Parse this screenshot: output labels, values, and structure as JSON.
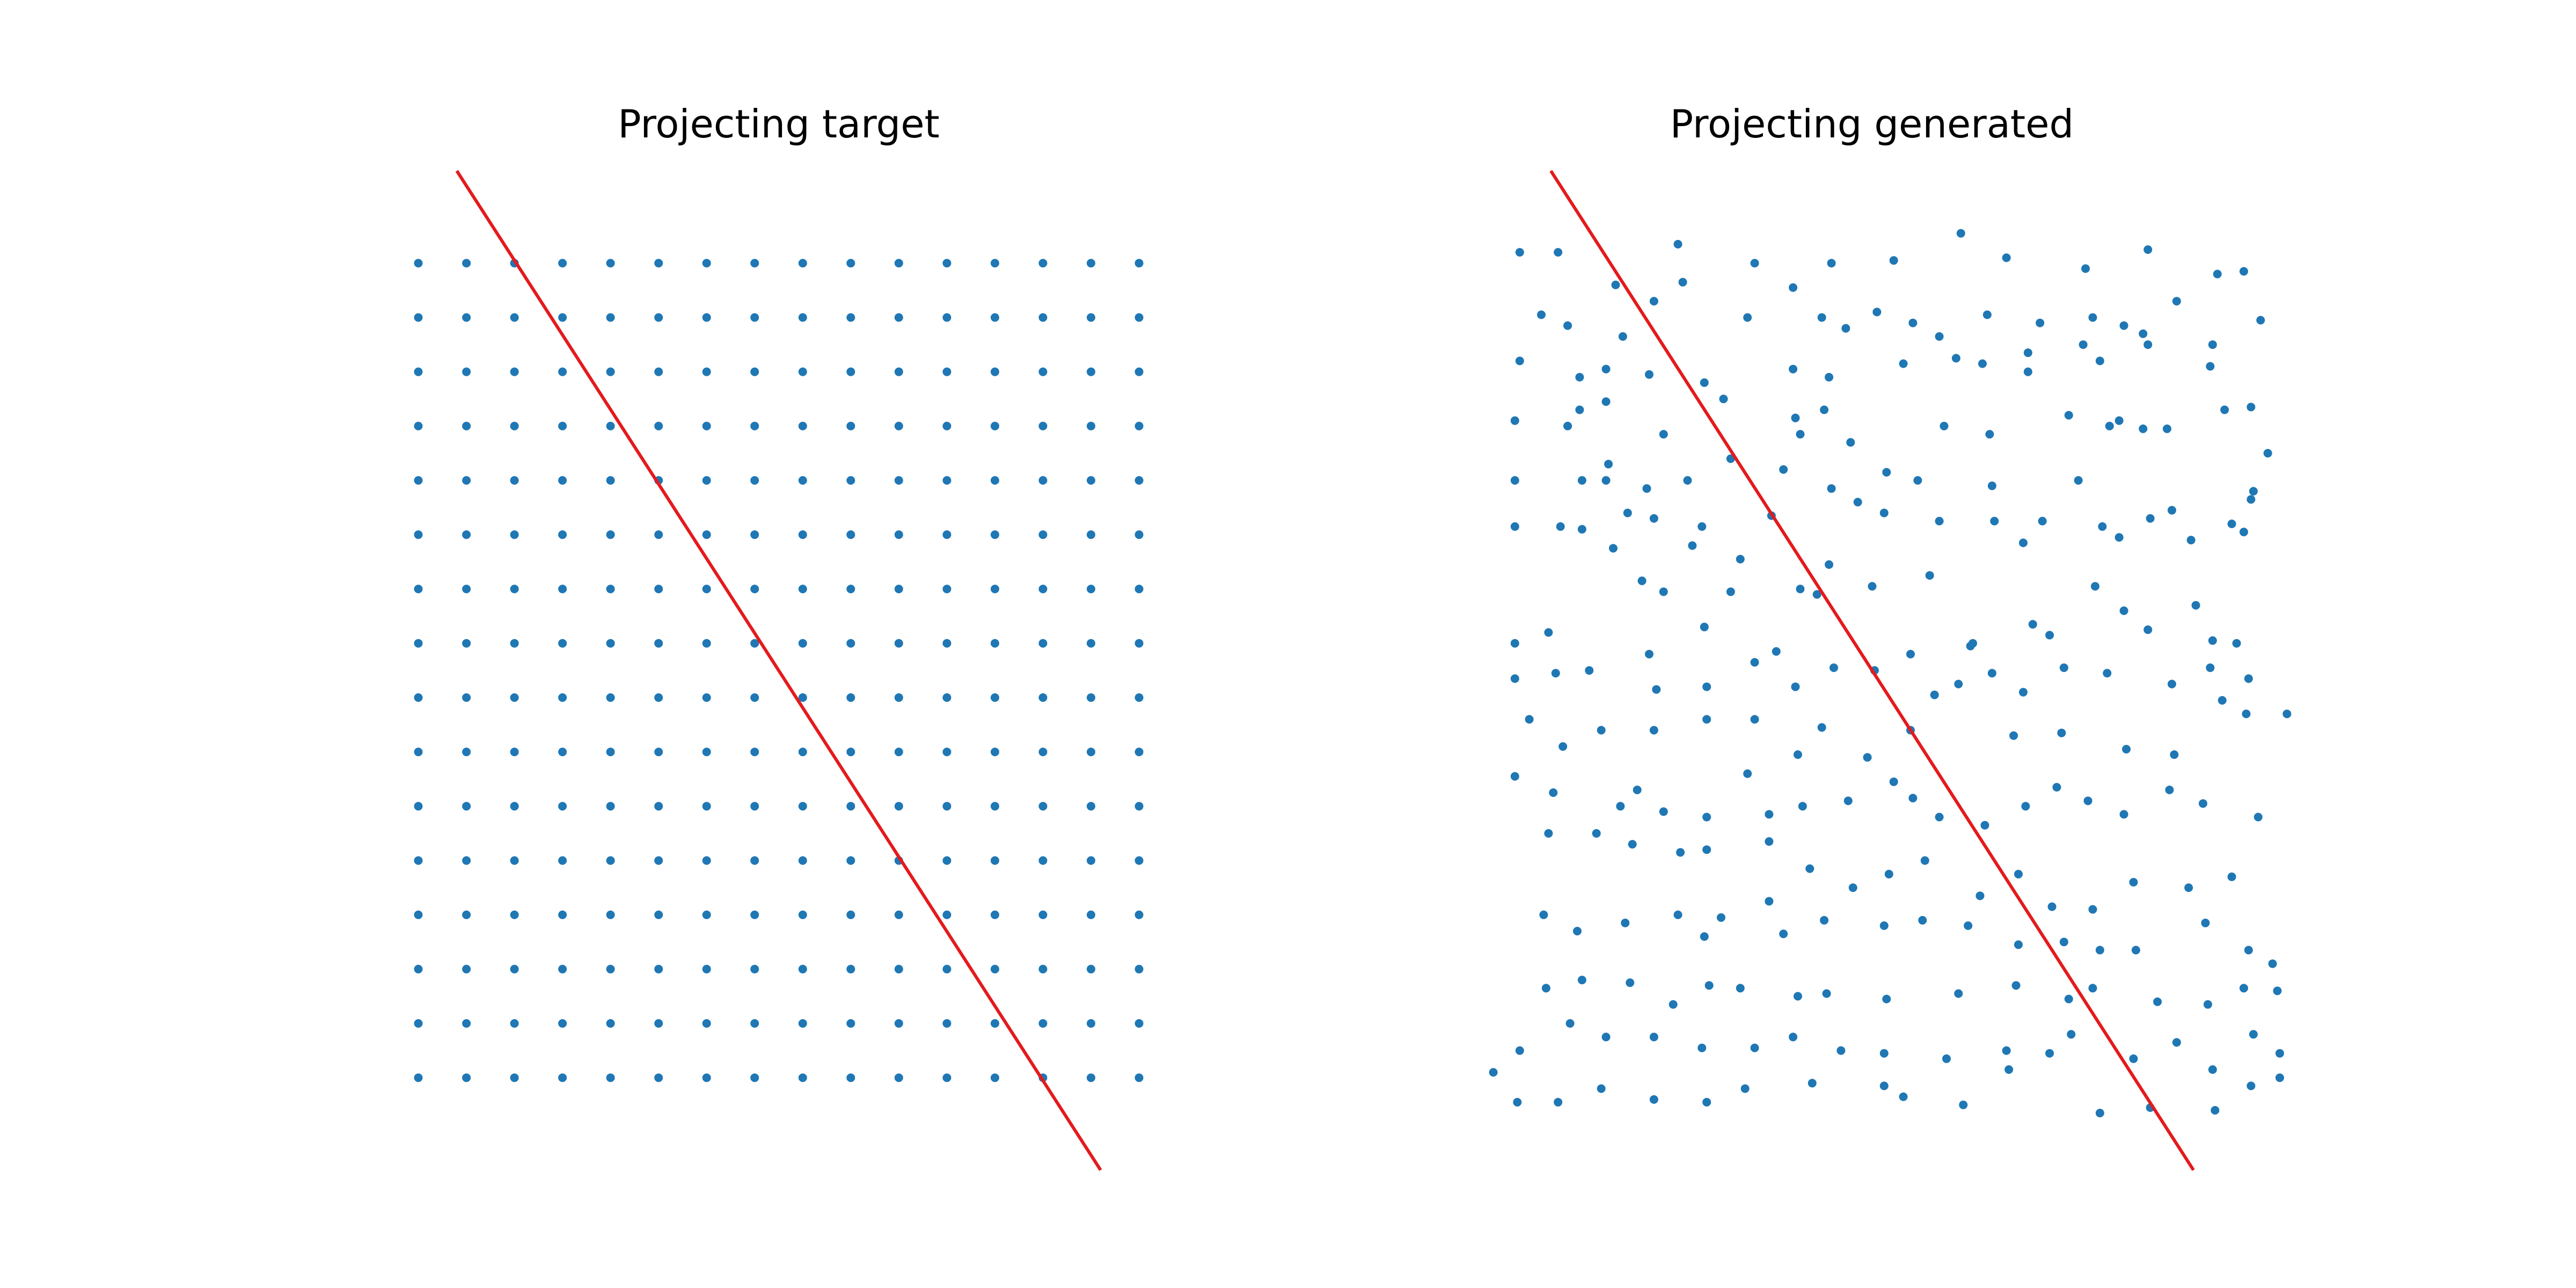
{
  "chart_data": [
    {
      "type": "scatter",
      "title": "Projecting target",
      "xlabel": "",
      "ylabel": "",
      "axes_visible": false,
      "grid": false,
      "xlim": [
        -1.0,
        16.0
      ],
      "ylim": [
        -1.5,
        17.0
      ],
      "point_color": "#1f77b4",
      "grid_points": {
        "x_start": 0,
        "x_end": 15,
        "y_start": 0,
        "y_end": 15,
        "step": 1
      },
      "projection_line": {
        "color": "#e41a1c",
        "points": [
          [
            0.8,
            16.7
          ],
          [
            14.2,
            -1.7
          ]
        ]
      }
    },
    {
      "type": "scatter",
      "title": "Projecting generated",
      "xlabel": "",
      "ylabel": "",
      "axes_visible": false,
      "grid": false,
      "xlim": [
        -1.0,
        16.0
      ],
      "ylim": [
        -1.5,
        17.0
      ],
      "point_color": "#1f77b4",
      "points": [
        [
          0.15,
          15.2
        ],
        [
          0.95,
          15.2
        ],
        [
          3.45,
          15.35
        ],
        [
          5.05,
          15.0
        ],
        [
          6.65,
          15.0
        ],
        [
          7.95,
          15.05
        ],
        [
          9.35,
          15.55
        ],
        [
          10.3,
          15.1
        ],
        [
          11.95,
          14.9
        ],
        [
          13.25,
          15.25
        ],
        [
          14.7,
          14.8
        ],
        [
          15.25,
          14.85
        ],
        [
          2.15,
          14.6
        ],
        [
          2.95,
          14.3
        ],
        [
          3.55,
          14.65
        ],
        [
          5.85,
          14.55
        ],
        [
          6.45,
          14.0
        ],
        [
          7.6,
          14.1
        ],
        [
          8.35,
          13.9
        ],
        [
          9.9,
          14.05
        ],
        [
          11.0,
          13.9
        ],
        [
          12.1,
          14.0
        ],
        [
          12.75,
          13.85
        ],
        [
          13.85,
          14.3
        ],
        [
          0.6,
          14.05
        ],
        [
          1.15,
          13.85
        ],
        [
          2.3,
          13.65
        ],
        [
          4.9,
          14.0
        ],
        [
          6.95,
          13.8
        ],
        [
          8.9,
          13.65
        ],
        [
          10.75,
          13.35
        ],
        [
          11.9,
          13.5
        ],
        [
          13.15,
          13.7
        ],
        [
          14.6,
          13.5
        ],
        [
          15.6,
          13.95
        ],
        [
          0.15,
          13.2
        ],
        [
          1.4,
          12.9
        ],
        [
          1.95,
          13.05
        ],
        [
          2.85,
          12.95
        ],
        [
          4.0,
          12.8
        ],
        [
          5.85,
          13.05
        ],
        [
          6.6,
          12.9
        ],
        [
          8.15,
          13.15
        ],
        [
          9.25,
          13.25
        ],
        [
          9.8,
          13.15
        ],
        [
          10.75,
          13.0
        ],
        [
          12.25,
          13.2
        ],
        [
          13.25,
          13.5
        ],
        [
          14.55,
          13.1
        ],
        [
          1.4,
          12.3
        ],
        [
          1.95,
          12.45
        ],
        [
          4.4,
          12.5
        ],
        [
          5.9,
          12.15
        ],
        [
          6.5,
          12.3
        ],
        [
          9.0,
          12.0
        ],
        [
          9.95,
          11.85
        ],
        [
          11.6,
          12.2
        ],
        [
          12.45,
          12.0
        ],
        [
          13.15,
          11.95
        ],
        [
          14.85,
          12.3
        ],
        [
          0.05,
          12.1
        ],
        [
          1.15,
          12.0
        ],
        [
          2.0,
          11.3
        ],
        [
          3.15,
          11.85
        ],
        [
          4.55,
          11.4
        ],
        [
          5.65,
          11.2
        ],
        [
          6.0,
          11.85
        ],
        [
          7.05,
          11.7
        ],
        [
          7.8,
          11.15
        ],
        [
          12.65,
          12.1
        ],
        [
          13.65,
          11.95
        ],
        [
          15.4,
          12.35
        ],
        [
          0.05,
          11.0
        ],
        [
          1.45,
          11.0
        ],
        [
          1.95,
          11.0
        ],
        [
          2.8,
          10.85
        ],
        [
          3.65,
          11.0
        ],
        [
          5.4,
          10.35
        ],
        [
          6.65,
          10.85
        ],
        [
          7.2,
          10.6
        ],
        [
          8.45,
          11.0
        ],
        [
          10.0,
          10.9
        ],
        [
          11.05,
          10.25
        ],
        [
          11.8,
          11.0
        ],
        [
          12.3,
          10.15
        ],
        [
          13.75,
          10.45
        ],
        [
          15.0,
          10.2
        ],
        [
          15.4,
          10.65
        ],
        [
          0.05,
          10.15
        ],
        [
          1.0,
          10.15
        ],
        [
          1.45,
          10.1
        ],
        [
          2.1,
          9.75
        ],
        [
          2.4,
          10.4
        ],
        [
          2.95,
          10.3
        ],
        [
          3.95,
          10.15
        ],
        [
          3.75,
          9.8
        ],
        [
          4.75,
          9.55
        ],
        [
          6.6,
          9.45
        ],
        [
          7.75,
          10.4
        ],
        [
          8.9,
          10.25
        ],
        [
          10.05,
          10.25
        ],
        [
          10.65,
          9.85
        ],
        [
          12.65,
          9.95
        ],
        [
          13.3,
          10.3
        ],
        [
          14.15,
          9.9
        ],
        [
          15.25,
          10.05
        ],
        [
          15.45,
          10.8
        ],
        [
          15.75,
          11.5
        ],
        [
          2.7,
          9.15
        ],
        [
          3.15,
          8.95
        ],
        [
          4.55,
          8.95
        ],
        [
          6.0,
          9.0
        ],
        [
          6.35,
          8.9
        ],
        [
          7.5,
          9.05
        ],
        [
          8.7,
          9.25
        ],
        [
          9.6,
          8.0
        ],
        [
          10.85,
          8.35
        ],
        [
          12.15,
          9.05
        ],
        [
          13.25,
          8.25
        ],
        [
          14.25,
          8.7
        ],
        [
          15.1,
          8.0
        ],
        [
          0.05,
          8.0
        ],
        [
          0.75,
          8.2
        ],
        [
          2.85,
          7.8
        ],
        [
          4.0,
          8.3
        ],
        [
          5.5,
          7.85
        ],
        [
          8.3,
          7.8
        ],
        [
          9.55,
          7.95
        ],
        [
          11.2,
          8.15
        ],
        [
          12.75,
          8.6
        ],
        [
          14.6,
          8.05
        ],
        [
          0.05,
          7.35
        ],
        [
          0.9,
          7.45
        ],
        [
          1.6,
          7.5
        ],
        [
          3.0,
          7.15
        ],
        [
          4.05,
          7.2
        ],
        [
          5.05,
          7.65
        ],
        [
          5.9,
          7.2
        ],
        [
          6.7,
          7.55
        ],
        [
          7.55,
          7.5
        ],
        [
          8.8,
          7.05
        ],
        [
          9.3,
          7.25
        ],
        [
          10.0,
          7.45
        ],
        [
          10.65,
          7.1
        ],
        [
          11.5,
          7.55
        ],
        [
          12.4,
          7.45
        ],
        [
          13.75,
          7.25
        ],
        [
          14.55,
          7.55
        ],
        [
          15.35,
          7.35
        ],
        [
          14.8,
          6.95
        ],
        [
          16.15,
          6.7
        ],
        [
          0.35,
          6.6
        ],
        [
          1.05,
          6.1
        ],
        [
          1.85,
          6.4
        ],
        [
          2.95,
          6.4
        ],
        [
          4.05,
          6.6
        ],
        [
          5.05,
          6.6
        ],
        [
          5.95,
          5.95
        ],
        [
          6.45,
          6.45
        ],
        [
          7.4,
          5.9
        ],
        [
          8.3,
          6.4
        ],
        [
          10.45,
          6.3
        ],
        [
          11.45,
          6.35
        ],
        [
          12.8,
          6.05
        ],
        [
          13.8,
          5.95
        ],
        [
          15.3,
          6.7
        ],
        [
          0.05,
          5.55
        ],
        [
          0.85,
          5.25
        ],
        [
          2.25,
          5.0
        ],
        [
          2.6,
          5.3
        ],
        [
          3.15,
          4.9
        ],
        [
          4.05,
          4.8
        ],
        [
          4.9,
          5.6
        ],
        [
          5.35,
          4.85
        ],
        [
          6.05,
          5.0
        ],
        [
          7.0,
          5.1
        ],
        [
          7.95,
          5.45
        ],
        [
          8.35,
          5.15
        ],
        [
          8.9,
          4.8
        ],
        [
          9.85,
          4.65
        ],
        [
          10.7,
          5.0
        ],
        [
          11.35,
          5.35
        ],
        [
          12.0,
          5.1
        ],
        [
          12.75,
          4.85
        ],
        [
          13.7,
          5.3
        ],
        [
          14.4,
          5.05
        ],
        [
          15.55,
          4.8
        ],
        [
          0.75,
          4.5
        ],
        [
          1.75,
          4.5
        ],
        [
          2.5,
          4.3
        ],
        [
          3.5,
          4.15
        ],
        [
          4.05,
          4.2
        ],
        [
          5.35,
          4.35
        ],
        [
          6.2,
          3.85
        ],
        [
          7.1,
          3.5
        ],
        [
          7.85,
          3.75
        ],
        [
          8.6,
          4.0
        ],
        [
          9.75,
          3.35
        ],
        [
          10.55,
          3.75
        ],
        [
          11.25,
          3.15
        ],
        [
          12.1,
          3.1
        ],
        [
          12.95,
          3.6
        ],
        [
          14.1,
          3.5
        ],
        [
          15.0,
          3.7
        ],
        [
          0.65,
          3.0
        ],
        [
          1.35,
          2.7
        ],
        [
          2.35,
          2.85
        ],
        [
          3.45,
          3.0
        ],
        [
          4.0,
          2.6
        ],
        [
          4.35,
          2.95
        ],
        [
          5.35,
          3.25
        ],
        [
          5.65,
          2.65
        ],
        [
          6.5,
          2.9
        ],
        [
          7.75,
          2.8
        ],
        [
          8.55,
          2.9
        ],
        [
          9.5,
          2.8
        ],
        [
          10.55,
          2.45
        ],
        [
          11.5,
          2.5
        ],
        [
          12.25,
          2.35
        ],
        [
          13.0,
          2.35
        ],
        [
          14.45,
          2.85
        ],
        [
          15.35,
          2.35
        ],
        [
          15.85,
          2.1
        ],
        [
          0.7,
          1.65
        ],
        [
          1.45,
          1.8
        ],
        [
          2.45,
          1.75
        ],
        [
          3.35,
          1.35
        ],
        [
          4.1,
          1.7
        ],
        [
          4.75,
          1.65
        ],
        [
          5.95,
          1.5
        ],
        [
          6.55,
          1.55
        ],
        [
          7.8,
          1.45
        ],
        [
          9.3,
          1.55
        ],
        [
          10.5,
          1.7
        ],
        [
          11.6,
          1.45
        ],
        [
          12.1,
          1.65
        ],
        [
          13.45,
          1.4
        ],
        [
          14.5,
          1.35
        ],
        [
          15.25,
          1.65
        ],
        [
          15.95,
          1.6
        ],
        [
          0.15,
          0.5
        ],
        [
          1.2,
          1.0
        ],
        [
          1.95,
          0.75
        ],
        [
          2.95,
          0.75
        ],
        [
          3.95,
          0.55
        ],
        [
          5.05,
          0.55
        ],
        [
          5.85,
          0.75
        ],
        [
          6.85,
          0.5
        ],
        [
          7.75,
          0.45
        ],
        [
          9.05,
          0.35
        ],
        [
          10.3,
          0.5
        ],
        [
          11.2,
          0.45
        ],
        [
          11.65,
          0.8
        ],
        [
          12.95,
          0.35
        ],
        [
          13.85,
          0.65
        ],
        [
          14.6,
          0.15
        ],
        [
          15.45,
          0.8
        ],
        [
          16.0,
          0.45
        ],
        [
          -0.4,
          0.1
        ],
        [
          0.1,
          -0.45
        ],
        [
          0.95,
          -0.45
        ],
        [
          1.85,
          -0.2
        ],
        [
          2.95,
          -0.4
        ],
        [
          4.05,
          -0.45
        ],
        [
          4.85,
          -0.2
        ],
        [
          6.25,
          -0.1
        ],
        [
          7.75,
          -0.15
        ],
        [
          8.15,
          -0.35
        ],
        [
          9.4,
          -0.5
        ],
        [
          10.35,
          0.15
        ],
        [
          12.25,
          -0.65
        ],
        [
          13.3,
          -0.55
        ],
        [
          14.65,
          -0.6
        ],
        [
          15.4,
          -0.15
        ],
        [
          16.0,
          0.0
        ]
      ],
      "projection_line": {
        "color": "#e41a1c",
        "points": [
          [
            0.8,
            16.7
          ],
          [
            14.2,
            -1.7
          ]
        ]
      }
    }
  ]
}
